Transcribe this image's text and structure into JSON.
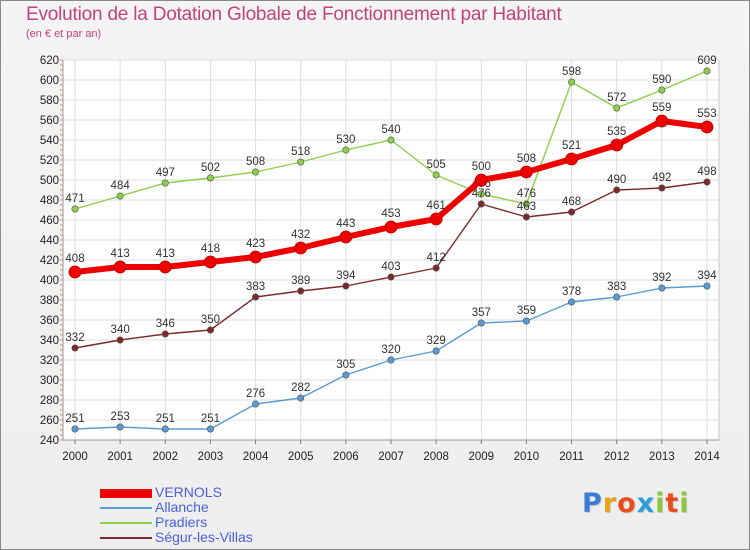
{
  "header": {
    "title": "Evolution de la Dotation Globale de Fonctionnement par Habitant",
    "subtitle": "(en € et par an)"
  },
  "logo": {
    "text": "Proxiti",
    "letter_colors": [
      "#3a7bd5",
      "#e8a317",
      "#e84e1b",
      "#2a9fd8",
      "#8cc63f",
      "#e84e1b",
      "#8cc63f"
    ]
  },
  "chart_data": {
    "type": "line",
    "x": [
      "2000",
      "2001",
      "2002",
      "2003",
      "2004",
      "2005",
      "2006",
      "2007",
      "2008",
      "2009",
      "2010",
      "2011",
      "2012",
      "2013",
      "2014"
    ],
    "ylim": [
      240,
      620
    ],
    "yticks": [
      240,
      260,
      280,
      300,
      320,
      340,
      360,
      380,
      400,
      420,
      440,
      460,
      480,
      500,
      520,
      540,
      560,
      580,
      600,
      620
    ],
    "grid": true,
    "legend_placement": "bottom-left",
    "series": [
      {
        "name": "VERNOLS",
        "color": "#ee0000",
        "values": [
          408,
          413,
          413,
          418,
          423,
          432,
          443,
          453,
          461,
          500,
          508,
          521,
          535,
          559,
          553
        ]
      },
      {
        "name": "Allanche",
        "color": "#5a9bd4",
        "values": [
          251,
          253,
          251,
          251,
          276,
          282,
          305,
          320,
          329,
          357,
          359,
          378,
          383,
          392,
          394
        ]
      },
      {
        "name": "Pradiers",
        "color": "#8cd048",
        "values": [
          471,
          484,
          497,
          502,
          508,
          518,
          530,
          540,
          505,
          486,
          476,
          598,
          572,
          590,
          609
        ]
      },
      {
        "name": "Ségur-les-Villas",
        "color": "#7a2a2a",
        "values": [
          332,
          340,
          346,
          350,
          383,
          389,
          394,
          403,
          412,
          476,
          463,
          468,
          490,
          492,
          498
        ]
      }
    ]
  }
}
